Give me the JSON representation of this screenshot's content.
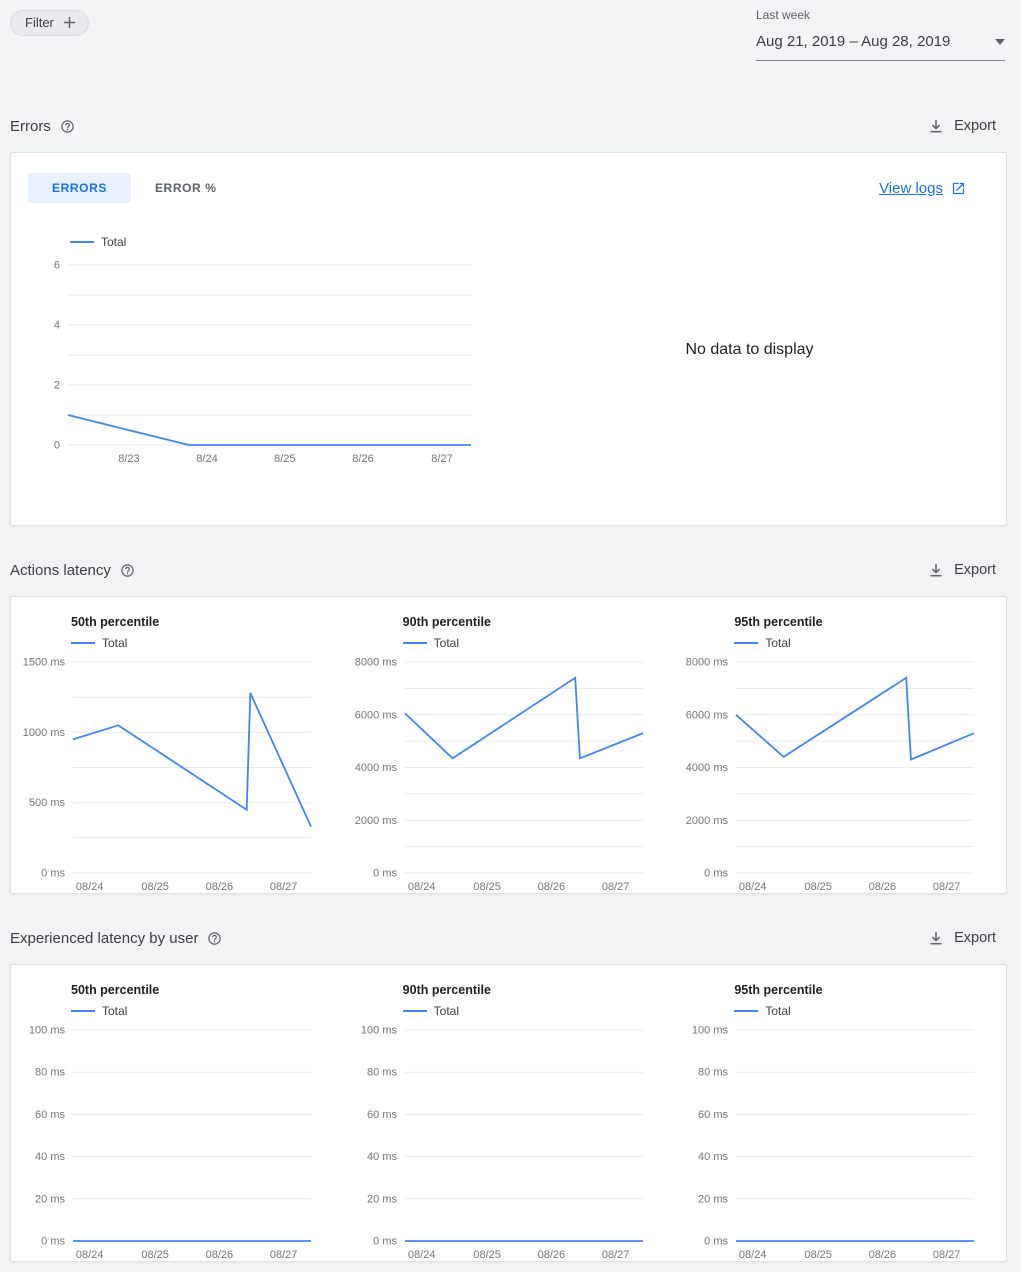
{
  "colors": {
    "accent": "#1a73e8",
    "line": "#4285f4",
    "grid": "#e8eaed"
  },
  "toolbar": {
    "filter_label": "Filter",
    "date_range_label": "Last week",
    "date_range_value": "Aug 21, 2019 – Aug 28, 2019"
  },
  "errors_section": {
    "title": "Errors",
    "export_label": "Export",
    "tabs": [
      {
        "label": "ERRORS",
        "active": true
      },
      {
        "label": "ERROR %",
        "active": false
      }
    ],
    "view_logs_label": "View logs",
    "no_data_text": "No data to display"
  },
  "actions_latency_section": {
    "title": "Actions latency",
    "export_label": "Export"
  },
  "experienced_latency_section": {
    "title": "Experienced latency by user",
    "export_label": "Export"
  },
  "chart_data": [
    {
      "id": "errors-total",
      "type": "line",
      "section": "Errors",
      "title": "",
      "legend": "Total",
      "ylim": [
        0,
        6
      ],
      "grid_step": 1,
      "y_ticks": [
        0,
        2,
        4,
        6
      ],
      "y_suffix": "",
      "x_ticks": [
        {
          "pos": 0.151,
          "label": "8/23"
        },
        {
          "pos": 0.345,
          "label": "8/24"
        },
        {
          "pos": 0.538,
          "label": "8/25"
        },
        {
          "pos": 0.732,
          "label": "8/26"
        },
        {
          "pos": 0.928,
          "label": "8/27"
        }
      ],
      "points": [
        [
          0,
          1
        ],
        [
          0.3,
          0
        ],
        [
          1,
          0
        ]
      ]
    },
    {
      "id": "actions-p50",
      "type": "line",
      "section": "Actions latency",
      "title": "50th percentile",
      "legend": "Total",
      "ylim": [
        0,
        1500
      ],
      "grid_step": 250,
      "y_ticks": [
        0,
        500,
        1000,
        1500
      ],
      "y_suffix": " ms",
      "x_ticks": [
        {
          "pos": 0.07,
          "label": "08/24"
        },
        {
          "pos": 0.345,
          "label": "08/25"
        },
        {
          "pos": 0.615,
          "label": "08/26"
        },
        {
          "pos": 0.885,
          "label": "08/27"
        }
      ],
      "points": [
        [
          0,
          950
        ],
        [
          0.19,
          1050
        ],
        [
          0.73,
          450
        ],
        [
          0.745,
          1280
        ],
        [
          1,
          330
        ]
      ]
    },
    {
      "id": "actions-p90",
      "type": "line",
      "section": "Actions latency",
      "title": "90th percentile",
      "legend": "Total",
      "ylim": [
        0,
        8000
      ],
      "grid_step": 1000,
      "y_ticks": [
        0,
        2000,
        4000,
        6000,
        8000
      ],
      "y_suffix": " ms",
      "x_ticks": [
        {
          "pos": 0.07,
          "label": "08/24"
        },
        {
          "pos": 0.345,
          "label": "08/25"
        },
        {
          "pos": 0.615,
          "label": "08/26"
        },
        {
          "pos": 0.885,
          "label": "08/27"
        }
      ],
      "points": [
        [
          0,
          6050
        ],
        [
          0.2,
          4350
        ],
        [
          0.715,
          7400
        ],
        [
          0.735,
          4350
        ],
        [
          1,
          5300
        ]
      ]
    },
    {
      "id": "actions-p95",
      "type": "line",
      "section": "Actions latency",
      "title": "95th percentile",
      "legend": "Total",
      "ylim": [
        0,
        8000
      ],
      "grid_step": 1000,
      "y_ticks": [
        0,
        2000,
        4000,
        6000,
        8000
      ],
      "y_suffix": " ms",
      "x_ticks": [
        {
          "pos": 0.07,
          "label": "08/24"
        },
        {
          "pos": 0.345,
          "label": "08/25"
        },
        {
          "pos": 0.615,
          "label": "08/26"
        },
        {
          "pos": 0.885,
          "label": "08/27"
        }
      ],
      "points": [
        [
          0,
          6000
        ],
        [
          0.2,
          4400
        ],
        [
          0.715,
          7400
        ],
        [
          0.735,
          4300
        ],
        [
          1,
          5300
        ]
      ]
    },
    {
      "id": "user-p50",
      "type": "line",
      "section": "Experienced latency by user",
      "title": "50th percentile",
      "legend": "Total",
      "ylim": [
        0,
        100
      ],
      "grid_step": 20,
      "y_ticks": [
        0,
        20,
        40,
        60,
        80,
        100
      ],
      "y_suffix": " ms",
      "x_ticks": [
        {
          "pos": 0.07,
          "label": "08/24"
        },
        {
          "pos": 0.345,
          "label": "08/25"
        },
        {
          "pos": 0.615,
          "label": "08/26"
        },
        {
          "pos": 0.885,
          "label": "08/27"
        }
      ],
      "points": [
        [
          0,
          0
        ],
        [
          1,
          0
        ]
      ]
    },
    {
      "id": "user-p90",
      "type": "line",
      "section": "Experienced latency by user",
      "title": "90th percentile",
      "legend": "Total",
      "ylim": [
        0,
        100
      ],
      "grid_step": 20,
      "y_ticks": [
        0,
        20,
        40,
        60,
        80,
        100
      ],
      "y_suffix": " ms",
      "x_ticks": [
        {
          "pos": 0.07,
          "label": "08/24"
        },
        {
          "pos": 0.345,
          "label": "08/25"
        },
        {
          "pos": 0.615,
          "label": "08/26"
        },
        {
          "pos": 0.885,
          "label": "08/27"
        }
      ],
      "points": [
        [
          0,
          0
        ],
        [
          1,
          0
        ]
      ]
    },
    {
      "id": "user-p95",
      "type": "line",
      "section": "Experienced latency by user",
      "title": "95th percentile",
      "legend": "Total",
      "ylim": [
        0,
        100
      ],
      "grid_step": 20,
      "y_ticks": [
        0,
        20,
        40,
        60,
        80,
        100
      ],
      "y_suffix": " ms",
      "x_ticks": [
        {
          "pos": 0.07,
          "label": "08/24"
        },
        {
          "pos": 0.345,
          "label": "08/25"
        },
        {
          "pos": 0.615,
          "label": "08/26"
        },
        {
          "pos": 0.885,
          "label": "08/27"
        }
      ],
      "points": [
        [
          0,
          0
        ],
        [
          1,
          0
        ]
      ]
    }
  ]
}
